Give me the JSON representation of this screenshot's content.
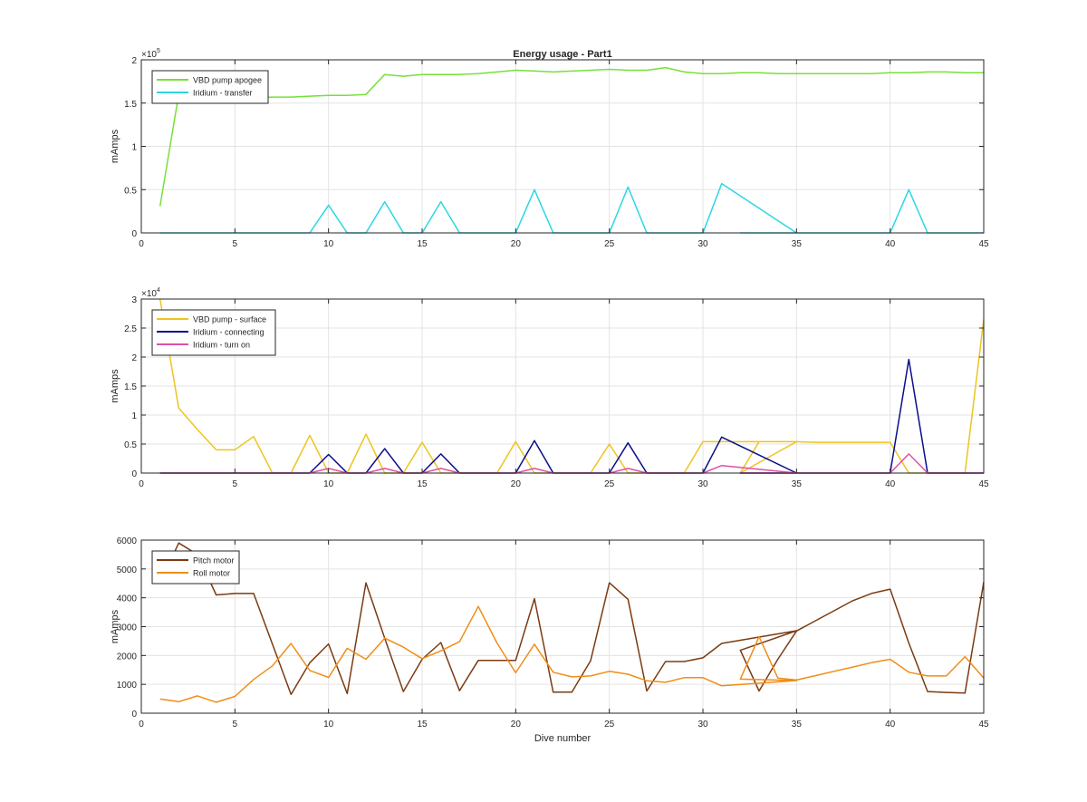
{
  "figure": {
    "title": "Energy usage - Part1",
    "xlabel": "Dive number"
  },
  "chart_data": [
    {
      "type": "line",
      "title": "Energy usage - Part1",
      "xlabel": "",
      "ylabel": "mAmps",
      "xlim": [
        0,
        45
      ],
      "ylim": [
        0,
        200000
      ],
      "xticks": [
        0,
        5,
        10,
        15,
        20,
        25,
        30,
        35,
        40,
        45
      ],
      "xtick_labels": [
        "0",
        "5",
        "10",
        "15",
        "20",
        "25",
        "30",
        "35",
        "40",
        "45"
      ],
      "yticks": [
        0,
        50000,
        100000,
        150000,
        200000
      ],
      "ytick_labels": [
        "0",
        "0.5",
        "1",
        "1.5",
        "2"
      ],
      "exponent": "5",
      "grid": true,
      "legend": "top-left",
      "series": [
        {
          "name": "VBD pump apogee",
          "color": "#77e03a",
          "x": [
            1,
            2,
            3,
            4,
            5,
            6,
            7,
            8,
            9,
            10,
            11,
            12,
            13,
            14,
            15,
            16,
            17,
            18,
            19,
            20,
            21,
            22,
            23,
            24,
            25,
            26,
            27,
            28,
            29,
            30,
            31,
            32,
            33,
            34,
            35,
            36,
            37,
            38,
            39,
            40,
            41,
            42,
            43,
            44,
            45
          ],
          "y": [
            31000,
            160000,
            157000,
            156000,
            156000,
            156000,
            157000,
            157000,
            158000,
            159000,
            159000,
            160000,
            183000,
            181000,
            183000,
            183000,
            183000,
            184000,
            186000,
            188000,
            187000,
            186000,
            187000,
            188000,
            189000,
            188000,
            188000,
            191000,
            186000,
            184000,
            184000,
            185000,
            185000,
            184000,
            184000,
            184000,
            184000,
            184000,
            184000,
            185000,
            185000,
            186000,
            186000,
            185000,
            185000
          ]
        },
        {
          "name": "Iridium - transfer",
          "color": "#2ad7e5",
          "x": [
            1,
            2,
            3,
            4,
            5,
            6,
            7,
            8,
            9,
            10,
            11,
            12,
            13,
            14,
            15,
            16,
            17,
            18,
            19,
            20,
            21,
            22,
            23,
            24,
            25,
            26,
            27,
            28,
            29,
            30,
            31,
            35,
            32,
            33,
            34,
            35,
            36,
            37,
            38,
            39,
            40,
            41,
            42,
            43,
            44,
            45
          ],
          "y": [
            0,
            0,
            0,
            0,
            0,
            0,
            0,
            0,
            0,
            32000,
            0,
            0,
            36000,
            0,
            0,
            36000,
            0,
            0,
            0,
            0,
            50000,
            0,
            0,
            0,
            0,
            53000,
            0,
            0,
            0,
            0,
            57000,
            0,
            0,
            0,
            0,
            0,
            0,
            0,
            0,
            0,
            0,
            50000,
            0,
            0,
            0,
            0
          ]
        }
      ]
    },
    {
      "type": "line",
      "title": "",
      "xlabel": "",
      "ylabel": "mAmps",
      "xlim": [
        0,
        45
      ],
      "ylim": [
        0,
        30000
      ],
      "xticks": [
        0,
        5,
        10,
        15,
        20,
        25,
        30,
        35,
        40,
        45
      ],
      "xtick_labels": [
        "0",
        "5",
        "10",
        "15",
        "20",
        "25",
        "30",
        "35",
        "40",
        "45"
      ],
      "yticks": [
        0,
        5000,
        10000,
        15000,
        20000,
        25000,
        30000
      ],
      "ytick_labels": [
        "0",
        "0.5",
        "1",
        "1.5",
        "2",
        "2.5",
        "3"
      ],
      "exponent": "4",
      "grid": true,
      "legend": "top-left",
      "series": [
        {
          "name": "VBD pump - surface",
          "color": "#edc41f",
          "x": [
            1,
            2,
            3,
            4,
            5,
            6,
            7,
            8,
            9,
            10,
            11,
            12,
            13,
            14,
            15,
            16,
            17,
            18,
            19,
            20,
            21,
            22,
            23,
            24,
            25,
            26,
            27,
            28,
            29,
            30,
            31,
            35,
            32,
            33,
            34,
            35,
            36,
            37,
            38,
            39,
            40,
            41,
            42,
            43,
            44,
            45
          ],
          "y": [
            30000,
            11200,
            7500,
            4000,
            4000,
            6300,
            0,
            0,
            6500,
            0,
            0,
            6700,
            0,
            0,
            5300,
            0,
            0,
            0,
            0,
            5400,
            0,
            0,
            0,
            0,
            5000,
            0,
            0,
            0,
            0,
            5400,
            5400,
            5400,
            0,
            5400,
            5400,
            5400,
            5300,
            5300,
            5300,
            5300,
            5300,
            0,
            0,
            0,
            0,
            26500
          ]
        },
        {
          "name": "Iridium - connecting",
          "color": "#0b0d8c",
          "x": [
            1,
            2,
            3,
            4,
            5,
            6,
            7,
            8,
            9,
            10,
            11,
            12,
            13,
            14,
            15,
            16,
            17,
            18,
            19,
            20,
            21,
            22,
            23,
            24,
            25,
            26,
            27,
            28,
            29,
            30,
            31,
            35,
            32,
            33,
            34,
            35,
            36,
            37,
            38,
            39,
            40,
            41,
            42,
            43,
            44,
            45
          ],
          "y": [
            0,
            0,
            0,
            0,
            0,
            0,
            0,
            0,
            0,
            3200,
            0,
            0,
            4200,
            0,
            0,
            3300,
            0,
            0,
            0,
            0,
            5600,
            0,
            0,
            0,
            0,
            5200,
            0,
            0,
            0,
            0,
            6200,
            0,
            0,
            0,
            0,
            0,
            0,
            0,
            0,
            0,
            0,
            19600,
            0,
            0,
            0,
            0
          ]
        },
        {
          "name": "Iridium - turn on",
          "color": "#e04fa8",
          "x": [
            1,
            2,
            3,
            4,
            5,
            6,
            7,
            8,
            9,
            10,
            11,
            12,
            13,
            14,
            15,
            16,
            17,
            18,
            19,
            20,
            21,
            22,
            23,
            24,
            25,
            26,
            27,
            28,
            29,
            30,
            31,
            35,
            32,
            33,
            34,
            35,
            36,
            37,
            38,
            39,
            40,
            41,
            42,
            43,
            44,
            45
          ],
          "y": [
            0,
            0,
            0,
            0,
            0,
            0,
            0,
            0,
            0,
            800,
            0,
            0,
            800,
            0,
            0,
            800,
            0,
            0,
            0,
            0,
            800,
            0,
            0,
            0,
            0,
            800,
            0,
            0,
            0,
            0,
            1300,
            0,
            0,
            0,
            0,
            0,
            0,
            0,
            0,
            0,
            0,
            3300,
            0,
            0,
            0,
            0
          ]
        }
      ]
    },
    {
      "type": "line",
      "title": "",
      "xlabel": "Dive number",
      "ylabel": "mAmps",
      "xlim": [
        0,
        45
      ],
      "ylim": [
        0,
        6000
      ],
      "xticks": [
        0,
        5,
        10,
        15,
        20,
        25,
        30,
        35,
        40,
        45
      ],
      "xtick_labels": [
        "0",
        "5",
        "10",
        "15",
        "20",
        "25",
        "30",
        "35",
        "40",
        "45"
      ],
      "yticks": [
        0,
        1000,
        2000,
        3000,
        4000,
        5000,
        6000
      ],
      "ytick_labels": [
        "0",
        "1000",
        "2000",
        "3000",
        "4000",
        "5000",
        "6000"
      ],
      "exponent": "",
      "grid": true,
      "legend": "top-left",
      "series": [
        {
          "name": "Pitch motor",
          "color": "#7b3b12",
          "x": [
            1,
            2,
            3,
            4,
            5,
            6,
            7,
            8,
            9,
            10,
            11,
            12,
            13,
            14,
            15,
            16,
            17,
            18,
            19,
            20,
            21,
            22,
            23,
            24,
            25,
            26,
            27,
            28,
            29,
            30,
            31,
            35,
            32,
            33,
            34,
            35,
            36,
            37,
            38,
            39,
            40,
            41,
            42,
            43,
            44,
            45
          ],
          "y": [
            4500,
            5900,
            5500,
            4100,
            4150,
            4150,
            2400,
            650,
            1750,
            2400,
            680,
            4520,
            2600,
            750,
            1870,
            2450,
            780,
            1830,
            1830,
            1830,
            3970,
            730,
            730,
            1820,
            4520,
            3950,
            770,
            1790,
            1790,
            1920,
            2420,
            2860,
            2180,
            770,
            1870,
            2850,
            3200,
            3550,
            3900,
            4150,
            4300,
            2430,
            750,
            720,
            700,
            4550
          ]
        },
        {
          "name": "Roll motor",
          "color": "#f08d16",
          "x": [
            1,
            2,
            3,
            4,
            5,
            6,
            7,
            8,
            9,
            10,
            11,
            12,
            13,
            14,
            15,
            16,
            17,
            18,
            19,
            20,
            21,
            22,
            23,
            24,
            25,
            26,
            27,
            28,
            29,
            30,
            31,
            35,
            32,
            33,
            34,
            35,
            36,
            37,
            38,
            39,
            40,
            41,
            42,
            43,
            44,
            45
          ],
          "y": [
            490,
            400,
            600,
            380,
            580,
            1170,
            1640,
            2420,
            1480,
            1240,
            2250,
            1870,
            2600,
            2290,
            1890,
            2160,
            2480,
            3700,
            2430,
            1400,
            2390,
            1420,
            1260,
            1290,
            1450,
            1350,
            1120,
            1070,
            1230,
            1230,
            950,
            1130,
            1180,
            2650,
            1220,
            1150,
            1300,
            1450,
            1600,
            1750,
            1870,
            1420,
            1290,
            1290,
            1960,
            1220
          ]
        }
      ]
    }
  ]
}
